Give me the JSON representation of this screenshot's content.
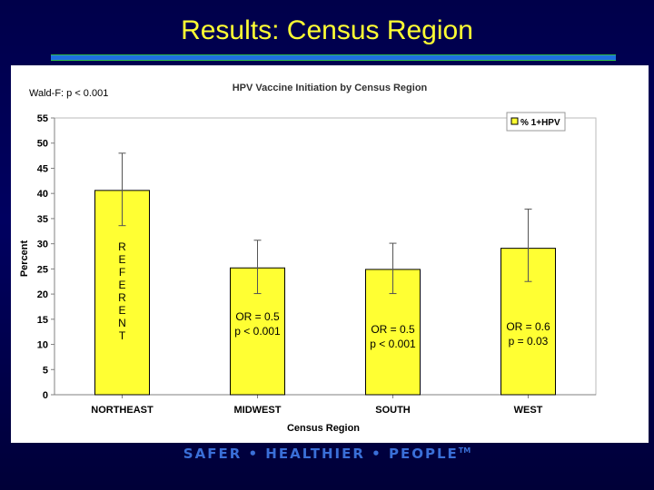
{
  "slide": {
    "title": "Results: Census Region",
    "footer": "SAFER • HEALTHIER • PEOPLE",
    "trademark": "TM"
  },
  "chart_data": {
    "type": "bar",
    "title": "HPV Vaccine Initiation by Census Region",
    "xlabel": "Census Region",
    "ylabel": "Percent",
    "ylim": [
      0,
      55
    ],
    "yticks": [
      0,
      5,
      10,
      15,
      20,
      25,
      30,
      35,
      40,
      45,
      50,
      55
    ],
    "grid": false,
    "legend_position": "top-right",
    "bar_color": "#ffff33",
    "categories": [
      "NORTHEAST",
      "MIDWEST",
      "SOUTH",
      "WEST"
    ],
    "series": [
      {
        "name": "% 1+HPV",
        "values": [
          40.6,
          25.2,
          24.9,
          29.1
        ],
        "error_low": [
          33.6,
          20.1,
          20.1,
          22.5
        ],
        "error_high": [
          48.0,
          30.7,
          30.1,
          36.9
        ]
      }
    ],
    "annotations": {
      "wald": "Wald-F: p < 0.001",
      "bar_labels": [
        [
          "R",
          "E",
          "F",
          "E",
          "R",
          "E",
          "N",
          "T"
        ],
        [
          "OR = 0.5",
          "p < 0.001"
        ],
        [
          "OR = 0.5",
          "p < 0.001"
        ],
        [
          "OR = 0.6",
          "p = 0.03"
        ]
      ]
    }
  }
}
